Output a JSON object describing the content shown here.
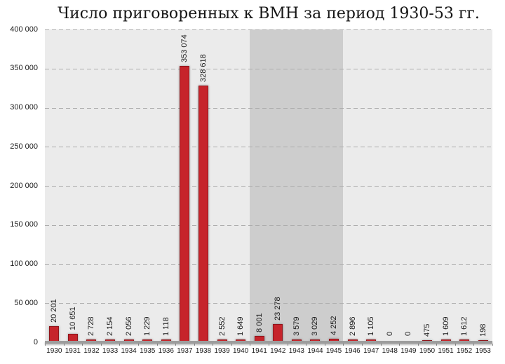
{
  "chart_data": {
    "type": "bar",
    "title": "Число приговоренных к ВМН за период 1930-53 гг.",
    "categories": [
      "1930",
      "1931",
      "1932",
      "1933",
      "1934",
      "1935",
      "1936",
      "1937",
      "1938",
      "1939",
      "1940",
      "1941",
      "1942",
      "1943",
      "1944",
      "1945",
      "1946",
      "1947",
      "1948",
      "1949",
      "1950",
      "1951",
      "1952",
      "1953"
    ],
    "values": [
      20201,
      10651,
      2728,
      2154,
      2056,
      1229,
      1118,
      353074,
      328618,
      2552,
      1649,
      8001,
      23278,
      3579,
      3029,
      4252,
      2896,
      1105,
      0,
      0,
      475,
      1609,
      1612,
      198
    ],
    "bar_labels": [
      "20 201",
      "10 651",
      "2 728",
      "2 154",
      "2 056",
      "1 229",
      "1 118",
      "353 074",
      "328 618",
      "2 552",
      "1 649",
      "8 001",
      "23 278",
      "3 579",
      "3 029",
      "4 252",
      "2 896",
      "1 105",
      "0",
      "0",
      "475",
      "1 609",
      "1 612",
      "198"
    ],
    "xlabel": "",
    "ylabel": "",
    "ylim": [
      0,
      400000
    ],
    "ytick_step": 50000,
    "ytick_labels": [
      "0",
      "50 000",
      "100 000",
      "150 000",
      "200 000",
      "250 000",
      "300 000",
      "350 000",
      "400 000"
    ],
    "grid": "horizontal-dashed",
    "legend": "none",
    "highlight_band": {
      "from": "1941",
      "to": "1945"
    },
    "colors": {
      "bar": "#c6242b",
      "bar_border": "#8f161c",
      "plot_bg": "#ebebeb",
      "band_bg": "#cdcdcd",
      "gridline": "#adadad",
      "axis_line": "#9d9d9d",
      "text": "#1a1a1a"
    }
  }
}
